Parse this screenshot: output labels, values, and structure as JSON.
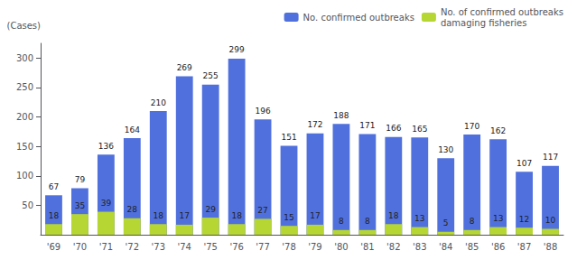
{
  "chart_data": {
    "type": "bar",
    "ylabel": "(Cases)",
    "categories": [
      "'69",
      "'70",
      "'71",
      "'72",
      "'73",
      "'74",
      "'75",
      "'76",
      "'77",
      "'78",
      "'79",
      "'80",
      "'81",
      "'82",
      "'83",
      "'84",
      "'85",
      "'86",
      "'87",
      "'88"
    ],
    "series": [
      {
        "name": "No. confirmed outbreaks",
        "values": [
          67,
          79,
          136,
          164,
          210,
          269,
          255,
          299,
          196,
          151,
          172,
          188,
          171,
          166,
          165,
          130,
          170,
          162,
          107,
          117
        ]
      },
      {
        "name": "No. of confirmed outbreaks\ndamaging fisheries",
        "values": [
          18,
          35,
          39,
          28,
          18,
          17,
          29,
          18,
          27,
          15,
          17,
          8,
          8,
          18,
          13,
          5,
          8,
          13,
          12,
          10
        ]
      }
    ],
    "ylim": [
      0,
      325
    ],
    "yticks": [
      50,
      100,
      150,
      200,
      250,
      300
    ],
    "grid": false,
    "legend": "upper right",
    "data_labels": true
  }
}
